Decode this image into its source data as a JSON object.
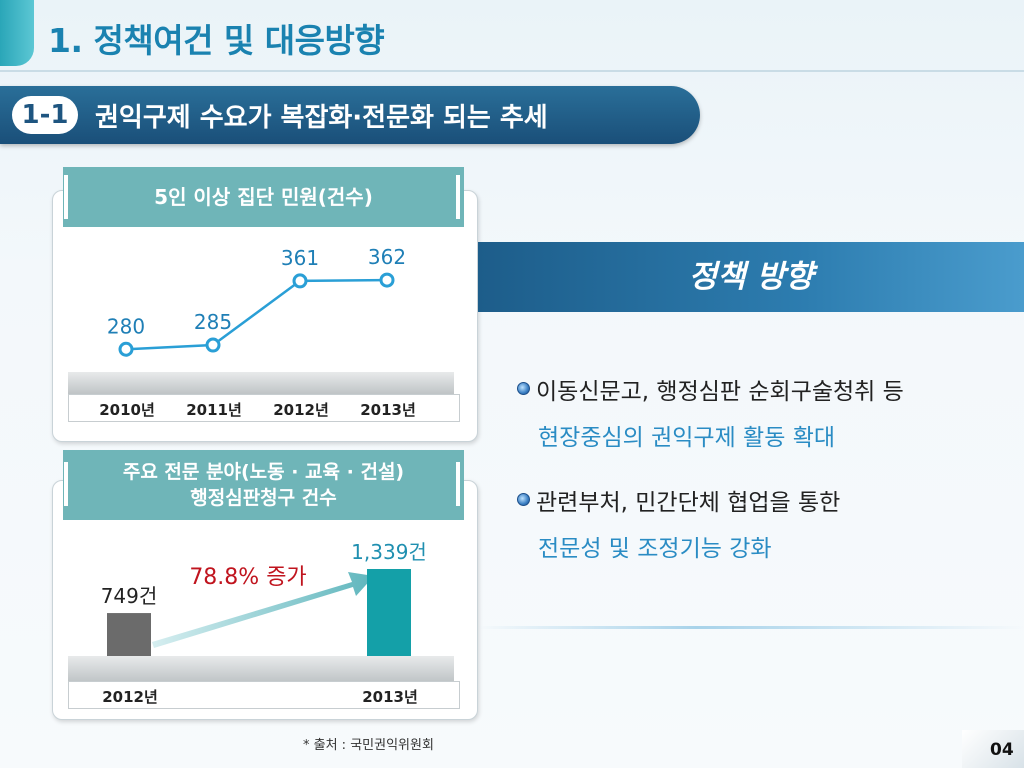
{
  "header": {
    "title": "1. 정책여건 및 대응방향",
    "section_number": "1-1",
    "section_title": "권익구제 수요가 복잡화·전문화 되는 추세"
  },
  "chart_data": [
    {
      "type": "line",
      "title": "5인 이상 집단 민원(건수)",
      "categories": [
        "2010년",
        "2011년",
        "2012년",
        "2013년"
      ],
      "series": [
        {
          "values": [
            280,
            285,
            361,
            362
          ]
        }
      ],
      "data_labels": [
        "280",
        "285",
        "361",
        "362"
      ],
      "ylim": [
        240,
        400
      ],
      "color": "#2a9fd6"
    },
    {
      "type": "bar",
      "title_lines": [
        "주요 전문 분야(노동 · 교육 · 건설)",
        "행정심판청구 건수"
      ],
      "categories": [
        "2012년",
        "2013년"
      ],
      "values": [
        749,
        1339
      ],
      "data_labels": [
        "749건",
        "1,339건"
      ],
      "ylim": [
        0,
        1339
      ],
      "colors": [
        "#6b6b6b",
        "#14a0a8"
      ],
      "annotation": "78.8% 증가",
      "annotation_color": "#c0141e"
    }
  ],
  "policy": {
    "title": "정책 방향",
    "items": [
      {
        "line1": "이동신문고, 행정심판 순회구술청취 등",
        "line2": "현장중심의 권익구제 활동 확대"
      },
      {
        "line1": "관련부처, 민간단체 협업을 통한",
        "line2": "전문성 및 조정기능 강화"
      }
    ]
  },
  "source": "* 출처 : 국민권익위원회",
  "page_number": "04"
}
